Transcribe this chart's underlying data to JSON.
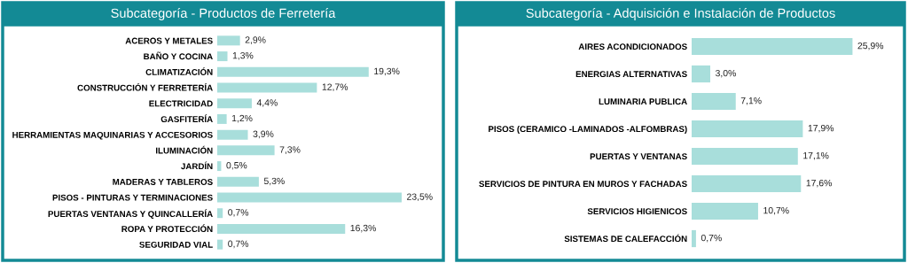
{
  "chart_data": [
    {
      "type": "bar",
      "orientation": "horizontal",
      "title": "Subcategoría - Productos de Ferretería",
      "categories": [
        "ACEROS Y METALES",
        "BAÑO Y COCINA",
        "CLIMATIZACIÓN",
        "CONSTRUCCIÓN Y FERRETERÍA",
        "ELECTRICIDAD",
        "GASFITERÍA",
        "HERRAMIENTAS MAQUINARIAS Y ACCESORIOS",
        "ILUMINACIÓN",
        "JARDÍN",
        "MADERAS Y TABLEROS",
        "PISOS - PINTURAS Y TERMINACIONES",
        "PUERTAS VENTANAS Y QUINCALLERÍA",
        "ROPA Y PROTECCIÓN",
        "SEGURIDAD VIAL"
      ],
      "values": [
        2.9,
        1.3,
        19.3,
        12.7,
        4.4,
        1.2,
        3.9,
        7.3,
        0.5,
        5.3,
        23.5,
        0.7,
        16.3,
        0.7
      ],
      "value_labels": [
        "2,9%",
        "1,3%",
        "19,3%",
        "12,7%",
        "4,4%",
        "1,2%",
        "3,9%",
        "7,3%",
        "0,5%",
        "5,3%",
        "23,5%",
        "0,7%",
        "16,3%",
        "0,7%"
      ],
      "color": "#a8dedb",
      "grid": false,
      "legend": false,
      "tick_labels": "y"
    },
    {
      "type": "bar",
      "orientation": "horizontal",
      "title": "Subcategoría - Adquisición e Instalación de Productos",
      "categories": [
        "AIRES ACONDICIONADOS",
        "ENERGIAS ALTERNATIVAS",
        "LUMINARIA PUBLICA",
        "PISOS (CERAMICO -LAMINADOS -ALFOMBRAS)",
        "PUERTAS Y VENTANAS",
        "SERVICIOS DE PINTURA EN MUROS Y FACHADAS",
        "SERVICIOS HIGIENICOS",
        "SISTEMAS DE CALEFACCIÓN"
      ],
      "values": [
        25.9,
        3.0,
        7.1,
        17.9,
        17.1,
        17.6,
        10.7,
        0.7
      ],
      "value_labels": [
        "25,9%",
        "3,0%",
        "7,1%",
        "17,9%",
        "17,1%",
        "17,6%",
        "10,7%",
        "0,7%"
      ],
      "color": "#a8dedb",
      "grid": false,
      "legend": false,
      "tick_labels": "y"
    }
  ]
}
